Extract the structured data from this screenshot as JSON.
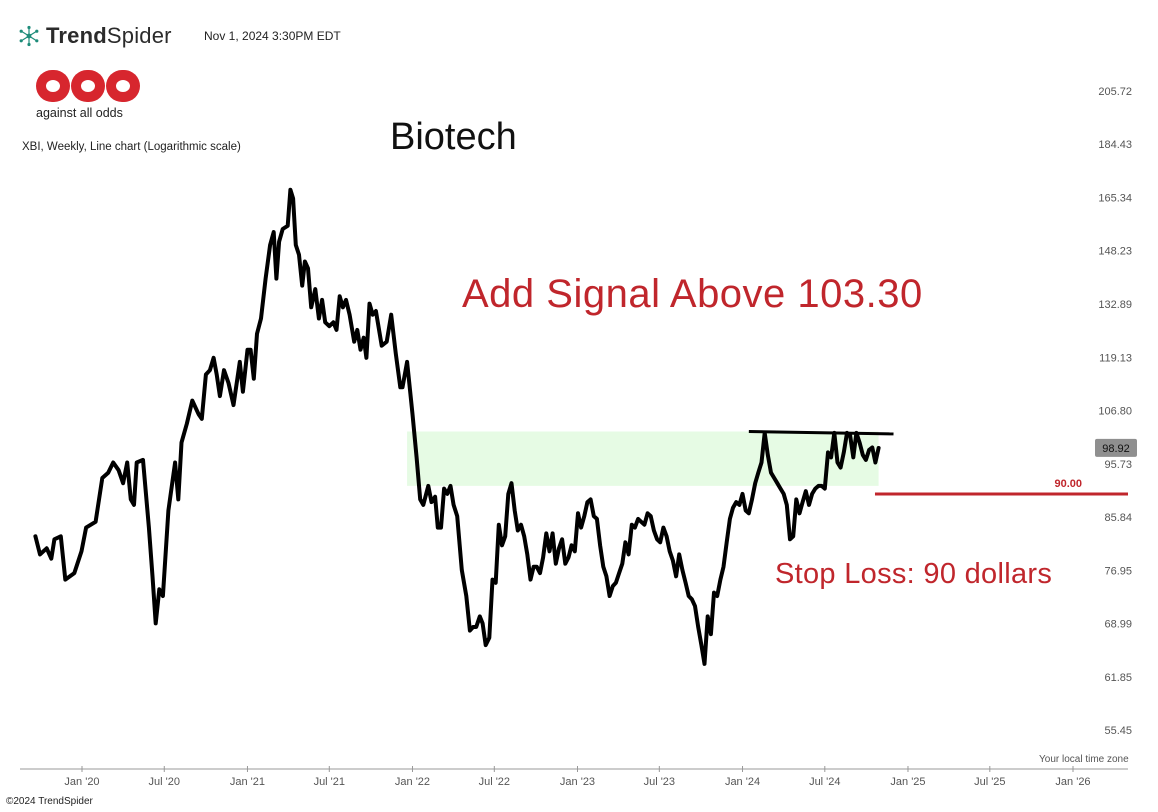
{
  "header": {
    "brand_name_bold": "Trend",
    "brand_name_light": "Spider",
    "timestamp": "Nov 1, 2024 3:30PM EDT",
    "logo_tagline": "against all odds",
    "instrument": "XBI, Weekly, Line chart (Logarithmic scale)"
  },
  "annotations": {
    "title": "Biotech",
    "signal": "Add Signal Above 103.30",
    "stop_loss": "Stop Loss: 90 dollars"
  },
  "footer": {
    "timezone_note": "Your local time zone",
    "copyright": "©2024 TrendSpider"
  },
  "colors": {
    "line": "#000000",
    "accent_red": "#c0262c",
    "zone_fill": "#e6fbe4",
    "price_tag_bg": "#8f8f8f"
  },
  "chart_data": {
    "type": "line",
    "title": "Biotech",
    "scale": "log",
    "ylim": [
      53,
      225
    ],
    "y_ticks": [
      "205.72",
      "184.43",
      "165.34",
      "148.23",
      "132.89",
      "119.13",
      "106.80",
      "95.73",
      "85.84",
      "76.95",
      "68.99",
      "61.85",
      "55.45"
    ],
    "x_ticks": [
      "Jan '20",
      "Jul '20",
      "Jan '21",
      "Jul '21",
      "Jan '22",
      "Jul '22",
      "Jan '23",
      "Jul '23",
      "Jan '24",
      "Jul '24",
      "Jan '25",
      "Jul '25",
      "Jan '26"
    ],
    "last_price": "98.92",
    "levels": [
      {
        "name": "stop",
        "value": 90.0,
        "label": "90.00",
        "from": "2024-10-20",
        "to": "2026-02-01"
      }
    ],
    "zone": {
      "low": 91.5,
      "high": 102.3,
      "from": "2021-12-20",
      "to": "2024-10-28"
    },
    "resistance": {
      "from": [
        "2024-01-15",
        102.3
      ],
      "to": [
        "2024-11-30",
        101.8
      ]
    },
    "series": [
      {
        "points": [
          [
            "2019-09-20",
            82.5
          ],
          [
            "2019-09-30",
            79.5
          ],
          [
            "2019-10-15",
            80.5
          ],
          [
            "2019-10-25",
            78.8
          ],
          [
            "2019-11-01",
            82.0
          ],
          [
            "2019-11-15",
            82.5
          ],
          [
            "2019-11-25",
            75.5
          ],
          [
            "2019-12-15",
            76.5
          ],
          [
            "2019-12-31",
            80.0
          ],
          [
            "2020-01-10",
            84.0
          ],
          [
            "2020-01-31",
            85.0
          ],
          [
            "2020-02-15",
            93.0
          ],
          [
            "2020-02-28",
            94.0
          ],
          [
            "2020-03-10",
            96.0
          ],
          [
            "2020-03-22",
            94.5
          ],
          [
            "2020-04-01",
            92.0
          ],
          [
            "2020-04-10",
            96.0
          ],
          [
            "2020-04-18",
            89.0
          ],
          [
            "2020-04-25",
            88.0
          ],
          [
            "2020-05-01",
            96.0
          ],
          [
            "2020-05-15",
            96.5
          ],
          [
            "2020-05-28",
            84.0
          ],
          [
            "2020-06-05",
            76.0
          ],
          [
            "2020-06-12",
            69.0
          ],
          [
            "2020-06-20",
            74.0
          ],
          [
            "2020-06-28",
            73.0
          ],
          [
            "2020-07-10",
            87.0
          ],
          [
            "2020-07-25",
            96.0
          ],
          [
            "2020-08-01",
            89.0
          ],
          [
            "2020-08-08",
            100.0
          ],
          [
            "2020-08-20",
            104.0
          ],
          [
            "2020-09-01",
            109.0
          ],
          [
            "2020-09-15",
            106.0
          ],
          [
            "2020-09-22",
            105.0
          ],
          [
            "2020-10-01",
            115.0
          ],
          [
            "2020-10-10",
            116.0
          ],
          [
            "2020-10-18",
            119.0
          ],
          [
            "2020-10-25",
            115.0
          ],
          [
            "2020-11-01",
            110.0
          ],
          [
            "2020-11-10",
            116.0
          ],
          [
            "2020-11-20",
            113.0
          ],
          [
            "2020-12-01",
            108.0
          ],
          [
            "2020-12-15",
            118.0
          ],
          [
            "2020-12-22",
            111.0
          ],
          [
            "2021-01-01",
            121.0
          ],
          [
            "2021-01-08",
            121.0
          ],
          [
            "2021-01-15",
            114.0
          ],
          [
            "2021-01-22",
            125.0
          ],
          [
            "2021-01-31",
            129.0
          ],
          [
            "2021-02-10",
            140.0
          ],
          [
            "2021-02-20",
            150.0
          ],
          [
            "2021-02-28",
            154.0
          ],
          [
            "2021-03-06",
            140.0
          ],
          [
            "2021-03-12",
            151.0
          ],
          [
            "2021-03-20",
            155.0
          ],
          [
            "2021-03-31",
            156.0
          ],
          [
            "2021-04-06",
            168.0
          ],
          [
            "2021-04-12",
            165.0
          ],
          [
            "2021-04-18",
            150.0
          ],
          [
            "2021-04-25",
            147.0
          ],
          [
            "2021-05-02",
            138.0
          ],
          [
            "2021-05-08",
            145.0
          ],
          [
            "2021-05-15",
            143.0
          ],
          [
            "2021-05-22",
            132.0
          ],
          [
            "2021-05-31",
            137.0
          ],
          [
            "2021-06-08",
            129.0
          ],
          [
            "2021-06-15",
            134.0
          ],
          [
            "2021-06-22",
            128.0
          ],
          [
            "2021-07-01",
            127.0
          ],
          [
            "2021-07-10",
            128.0
          ],
          [
            "2021-07-17",
            126.0
          ],
          [
            "2021-07-24",
            135.0
          ],
          [
            "2021-07-31",
            132.0
          ],
          [
            "2021-08-07",
            134.0
          ],
          [
            "2021-08-15",
            130.0
          ],
          [
            "2021-08-25",
            123.0
          ],
          [
            "2021-09-01",
            126.0
          ],
          [
            "2021-09-08",
            121.0
          ],
          [
            "2021-09-15",
            124.0
          ],
          [
            "2021-09-21",
            119.0
          ],
          [
            "2021-09-28",
            133.0
          ],
          [
            "2021-10-05",
            130.0
          ],
          [
            "2021-10-12",
            131.0
          ],
          [
            "2021-10-25",
            122.0
          ],
          [
            "2021-11-05",
            123.0
          ],
          [
            "2021-11-15",
            130.0
          ],
          [
            "2021-11-25",
            120.0
          ],
          [
            "2021-12-05",
            112.0
          ],
          [
            "2021-12-10",
            112.0
          ],
          [
            "2021-12-20",
            118.0
          ],
          [
            "2022-01-01",
            106.0
          ],
          [
            "2022-01-10",
            97.0
          ],
          [
            "2022-01-18",
            89.0
          ],
          [
            "2022-01-25",
            88.0
          ],
          [
            "2022-02-05",
            91.5
          ],
          [
            "2022-02-12",
            88.5
          ],
          [
            "2022-02-20",
            89.5
          ],
          [
            "2022-02-26",
            84.0
          ],
          [
            "2022-03-05",
            84.0
          ],
          [
            "2022-03-12",
            91.0
          ],
          [
            "2022-03-19",
            90.0
          ],
          [
            "2022-03-26",
            91.5
          ],
          [
            "2022-04-02",
            88.0
          ],
          [
            "2022-04-10",
            86.0
          ],
          [
            "2022-04-20",
            77.0
          ],
          [
            "2022-04-30",
            73.0
          ],
          [
            "2022-05-08",
            68.0
          ],
          [
            "2022-05-15",
            68.5
          ],
          [
            "2022-05-22",
            68.5
          ],
          [
            "2022-05-30",
            70.0
          ],
          [
            "2022-06-05",
            69.0
          ],
          [
            "2022-06-12",
            66.0
          ],
          [
            "2022-06-20",
            67.0
          ],
          [
            "2022-06-27",
            75.5
          ],
          [
            "2022-07-04",
            75.0
          ],
          [
            "2022-07-11",
            84.5
          ],
          [
            "2022-07-18",
            81.0
          ],
          [
            "2022-07-25",
            82.5
          ],
          [
            "2022-08-01",
            90.0
          ],
          [
            "2022-08-08",
            92.0
          ],
          [
            "2022-08-15",
            87.0
          ],
          [
            "2022-08-22",
            83.5
          ],
          [
            "2022-08-29",
            84.5
          ],
          [
            "2022-09-05",
            82.5
          ],
          [
            "2022-09-12",
            79.5
          ],
          [
            "2022-09-19",
            75.5
          ],
          [
            "2022-09-26",
            77.5
          ],
          [
            "2022-10-03",
            77.5
          ],
          [
            "2022-10-10",
            76.5
          ],
          [
            "2022-10-17",
            79.0
          ],
          [
            "2022-10-24",
            83.0
          ],
          [
            "2022-10-31",
            80.0
          ],
          [
            "2022-11-07",
            83.0
          ],
          [
            "2022-11-14",
            78.0
          ],
          [
            "2022-11-21",
            80.5
          ],
          [
            "2022-11-28",
            82.0
          ],
          [
            "2022-12-05",
            78.0
          ],
          [
            "2022-12-12",
            79.0
          ],
          [
            "2022-12-19",
            81.0
          ],
          [
            "2022-12-26",
            80.0
          ],
          [
            "2023-01-02",
            86.5
          ],
          [
            "2023-01-09",
            84.0
          ],
          [
            "2023-01-16",
            86.0
          ],
          [
            "2023-01-23",
            88.5
          ],
          [
            "2023-01-30",
            89.0
          ],
          [
            "2023-02-06",
            86.0
          ],
          [
            "2023-02-13",
            85.5
          ],
          [
            "2023-02-20",
            81.0
          ],
          [
            "2023-02-27",
            77.5
          ],
          [
            "2023-03-06",
            76.0
          ],
          [
            "2023-03-13",
            73.0
          ],
          [
            "2023-03-20",
            74.5
          ],
          [
            "2023-03-27",
            75.0
          ],
          [
            "2023-04-03",
            76.5
          ],
          [
            "2023-04-10",
            78.0
          ],
          [
            "2023-04-17",
            81.5
          ],
          [
            "2023-04-24",
            79.5
          ],
          [
            "2023-05-01",
            84.5
          ],
          [
            "2023-05-08",
            84.0
          ],
          [
            "2023-05-15",
            85.5
          ],
          [
            "2023-05-22",
            85.0
          ],
          [
            "2023-05-29",
            84.5
          ],
          [
            "2023-06-05",
            86.5
          ],
          [
            "2023-06-12",
            86.0
          ],
          [
            "2023-06-19",
            83.5
          ],
          [
            "2023-06-26",
            82.0
          ],
          [
            "2023-07-03",
            81.5
          ],
          [
            "2023-07-10",
            84.0
          ],
          [
            "2023-07-17",
            82.5
          ],
          [
            "2023-07-24",
            80.0
          ],
          [
            "2023-07-31",
            78.5
          ],
          [
            "2023-08-07",
            76.0
          ],
          [
            "2023-08-14",
            79.5
          ],
          [
            "2023-08-21",
            77.0
          ],
          [
            "2023-08-28",
            75.0
          ],
          [
            "2023-09-04",
            73.0
          ],
          [
            "2023-09-11",
            72.5
          ],
          [
            "2023-09-18",
            71.5
          ],
          [
            "2023-09-25",
            68.5
          ],
          [
            "2023-10-02",
            66.0
          ],
          [
            "2023-10-09",
            63.5
          ],
          [
            "2023-10-16",
            70.0
          ],
          [
            "2023-10-23",
            67.5
          ],
          [
            "2023-10-30",
            73.5
          ],
          [
            "2023-11-06",
            73.0
          ],
          [
            "2023-11-13",
            75.5
          ],
          [
            "2023-11-20",
            77.5
          ],
          [
            "2023-11-27",
            81.5
          ],
          [
            "2023-12-04",
            85.5
          ],
          [
            "2023-12-11",
            87.5
          ],
          [
            "2023-12-18",
            88.5
          ],
          [
            "2023-12-25",
            88.0
          ],
          [
            "2024-01-01",
            90.0
          ],
          [
            "2024-01-08",
            87.0
          ],
          [
            "2024-01-15",
            86.5
          ],
          [
            "2024-01-22",
            89.0
          ],
          [
            "2024-01-29",
            92.0
          ],
          [
            "2024-02-05",
            94.0
          ],
          [
            "2024-02-12",
            96.0
          ],
          [
            "2024-02-19",
            102.0
          ],
          [
            "2024-02-26",
            97.5
          ],
          [
            "2024-03-04",
            94.0
          ],
          [
            "2024-03-11",
            93.0
          ],
          [
            "2024-03-18",
            92.0
          ],
          [
            "2024-03-25",
            91.0
          ],
          [
            "2024-04-01",
            90.0
          ],
          [
            "2024-04-08",
            88.0
          ],
          [
            "2024-04-15",
            82.0
          ],
          [
            "2024-04-22",
            82.5
          ],
          [
            "2024-04-29",
            89.0
          ],
          [
            "2024-05-06",
            86.5
          ],
          [
            "2024-05-13",
            88.5
          ],
          [
            "2024-05-20",
            90.5
          ],
          [
            "2024-05-27",
            88.0
          ],
          [
            "2024-06-03",
            90.0
          ],
          [
            "2024-06-10",
            91.0
          ],
          [
            "2024-06-17",
            91.5
          ],
          [
            "2024-06-24",
            91.5
          ],
          [
            "2024-07-01",
            91.0
          ],
          [
            "2024-07-08",
            98.0
          ],
          [
            "2024-07-15",
            97.0
          ],
          [
            "2024-07-22",
            102.0
          ],
          [
            "2024-07-29",
            96.0
          ],
          [
            "2024-08-05",
            95.0
          ],
          [
            "2024-08-12",
            98.0
          ],
          [
            "2024-08-19",
            102.0
          ],
          [
            "2024-08-26",
            101.5
          ],
          [
            "2024-09-02",
            97.0
          ],
          [
            "2024-09-09",
            102.0
          ],
          [
            "2024-09-16",
            100.0
          ],
          [
            "2024-09-23",
            97.5
          ],
          [
            "2024-09-30",
            96.5
          ],
          [
            "2024-10-07",
            98.5
          ],
          [
            "2024-10-14",
            99.0
          ],
          [
            "2024-10-21",
            96.0
          ],
          [
            "2024-10-28",
            98.9
          ]
        ]
      }
    ]
  }
}
